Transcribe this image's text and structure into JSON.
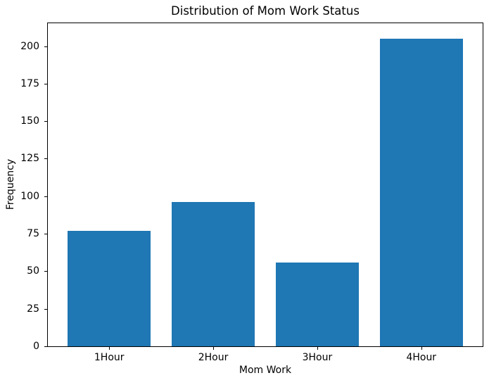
{
  "chart_data": {
    "type": "bar",
    "title": "Distribution of Mom Work Status",
    "xlabel": "Mom Work",
    "ylabel": "Frequency",
    "categories": [
      "1Hour",
      "2Hour",
      "3Hour",
      "4Hour"
    ],
    "values": [
      77,
      96,
      56,
      205
    ],
    "ylim": [
      0,
      215.25
    ],
    "yticks": [
      0,
      25,
      50,
      75,
      100,
      125,
      150,
      175,
      200
    ],
    "bar_color": "#1f77b4",
    "bar_width_fraction": 0.8,
    "x_margin": 0.59,
    "grid": false,
    "legend": null,
    "background_color": "#ffffff",
    "spine_color": "#000000",
    "text_color": "#000000"
  }
}
